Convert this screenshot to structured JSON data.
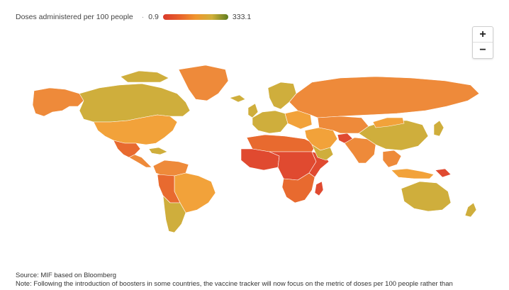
{
  "legend": {
    "title": "Doses administered per 100 people",
    "min": "0.9",
    "max": "333.1",
    "colors": [
      "#d93a2b",
      "#e8602b",
      "#f0962e",
      "#d0b03a",
      "#5f7d1f"
    ]
  },
  "zoom": {
    "in": "+",
    "out": "−"
  },
  "footer": {
    "source": "Source: MIF based on Bloomberg",
    "note": "Note: Following the introduction of boosters in some countries, the vaccine tracker will now focus on the metric of doses per 100 people rather than"
  },
  "palette": {
    "red": "#e04a30",
    "red_orange": "#e86a2f",
    "orange": "#ee8a3a",
    "light_orange": "#f2a23a",
    "olive": "#cfae3c",
    "dark_olive": "#b8a23a"
  }
}
